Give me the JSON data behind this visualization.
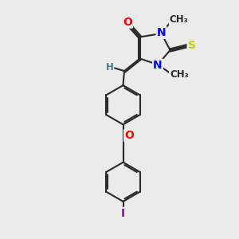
{
  "bg_color": "#ebebeb",
  "bond_color": "#2a2a2a",
  "bond_width": 1.5,
  "dbo": 0.06,
  "atom_colors": {
    "O": "#ff0000",
    "N": "#0000ee",
    "S": "#cccc00",
    "I": "#9900cc",
    "H": "#3a8080",
    "C": "#2a2a2a"
  },
  "fs": 10,
  "fs_small": 8.5
}
